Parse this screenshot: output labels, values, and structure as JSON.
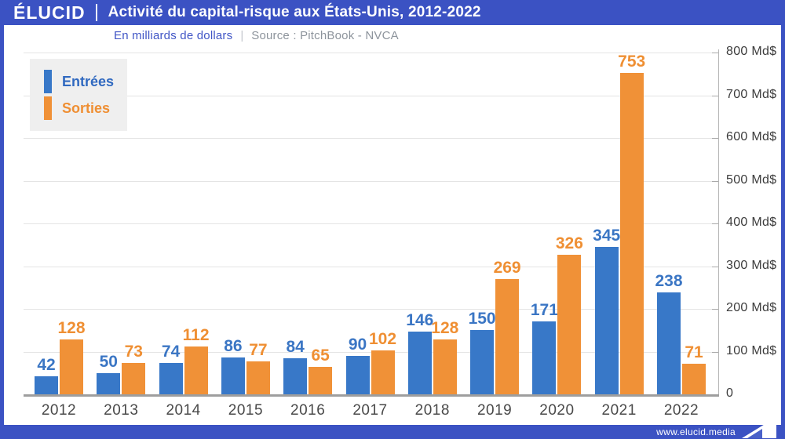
{
  "header": {
    "logo": "ÉLUCID",
    "title": "Activité du capital-risque aux États-Unis, 2012-2022",
    "subtitle": "En milliards de dollars",
    "separator": "|",
    "source": "Source : PitchBook - NVCA"
  },
  "legend": {
    "entrees_label": "Entrées",
    "sorties_label": "Sorties"
  },
  "footer": {
    "url": "www.elucid.media"
  },
  "colors": {
    "brand_blue": "#3b52c3",
    "bar_blue": "#3878c8",
    "bar_orange": "#f09137",
    "grid": "#e4e4e4",
    "axis": "#9e9e9e"
  },
  "chart_data": {
    "type": "bar",
    "title": "Activité du capital-risque aux États-Unis, 2012-2022",
    "subtitle": "En milliards de dollars",
    "source": "Source : PitchBook - NVCA",
    "categories": [
      "2012",
      "2013",
      "2014",
      "2015",
      "2016",
      "2017",
      "2018",
      "2019",
      "2020",
      "2021",
      "2022"
    ],
    "series": [
      {
        "name": "Entrées",
        "color": "#3878c8",
        "label_color": "#3b76c4",
        "values": [
          42,
          50,
          74,
          86,
          84,
          90,
          146,
          150,
          171,
          345,
          238
        ]
      },
      {
        "name": "Sorties",
        "color": "#f09137",
        "label_color": "#ef8f33",
        "values": [
          128,
          73,
          112,
          77,
          65,
          102,
          128,
          269,
          326,
          753,
          71
        ]
      }
    ],
    "ylim": [
      0,
      800
    ],
    "ytick_step": 100,
    "ytick_labels": [
      "0",
      "100 Md$",
      "200 Md$",
      "300 Md$",
      "400 Md$",
      "500 Md$",
      "600 Md$",
      "700 Md$",
      "800 Md$"
    ],
    "grid": true,
    "legend_position": "top-left",
    "axis_side": "right",
    "value_labels": true
  }
}
